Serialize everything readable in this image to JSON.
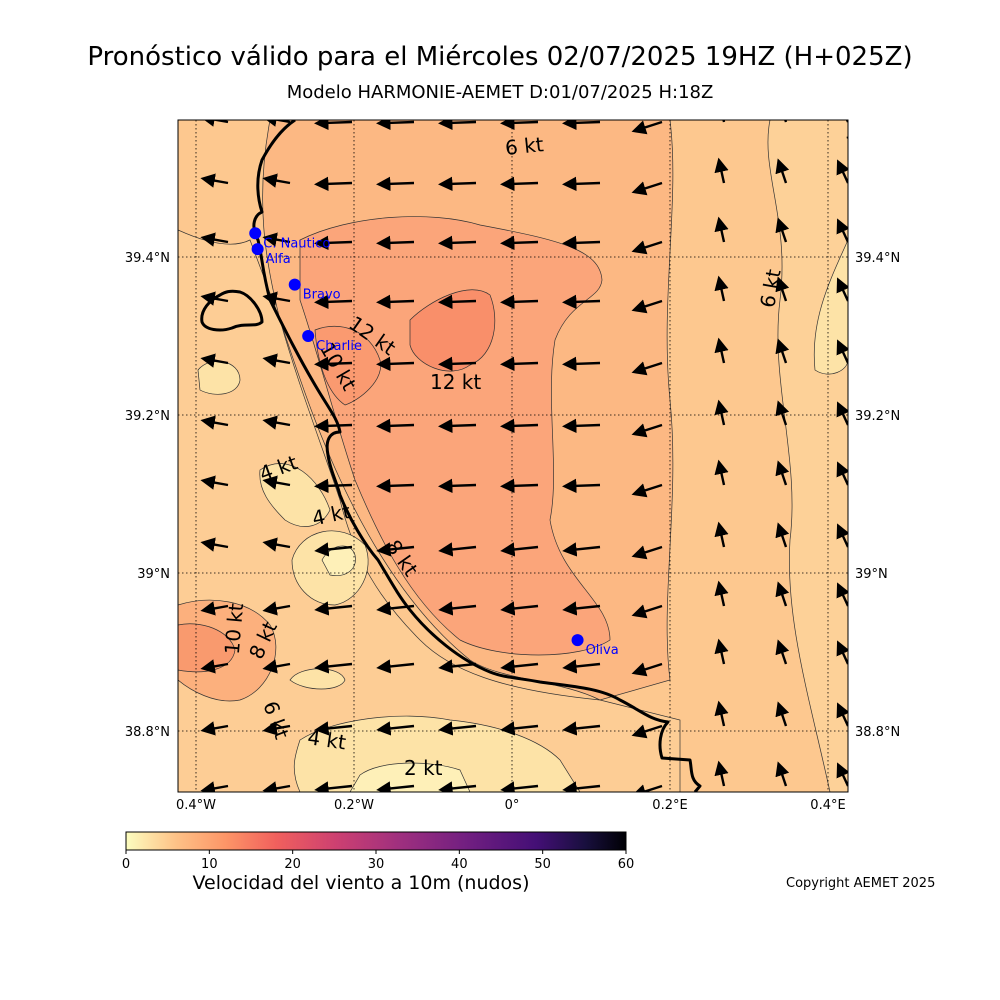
{
  "title": "Pronóstico válido para el Miércoles 02/07/2025 19HZ (H+025Z)",
  "subtitle": "Modelo HARMONIE-AEMET D:01/07/2025 H:18Z",
  "colorbar": {
    "label": "Velocidad del viento a 10m (nudos)",
    "ticks": [
      "0",
      "10",
      "20",
      "30",
      "40",
      "50",
      "60"
    ],
    "min": 0,
    "max": 60,
    "colormap": "magma_r"
  },
  "copyright": "Copyright AEMET 2025",
  "axes": {
    "lon_ticks": [
      "0.4°W",
      "0.2°W",
      "0°",
      "0.2°E",
      "0.4°E"
    ],
    "lat_ticks": [
      "39.4°N",
      "39.2°N",
      "39°N",
      "38.8°N"
    ],
    "lon_values": [
      -0.4,
      -0.2,
      0,
      0.2,
      0.4
    ],
    "lat_values": [
      39.4,
      39.2,
      39.0,
      38.8
    ],
    "grid": "dotted"
  },
  "contour_labels": [
    "6 kt",
    "4 kt",
    "6 kt",
    "12 kt",
    "10 kt",
    "12 kt",
    "4 kt",
    "4 kt",
    "8 kt",
    "10 kt",
    "8 kt",
    "6 kt",
    "4 kt",
    "2 kt"
  ],
  "stations": [
    {
      "name": "C. Nautico",
      "lon": -0.325,
      "lat": 39.43
    },
    {
      "name": "Alfa",
      "lon": -0.322,
      "lat": 39.41
    },
    {
      "name": "Bravo",
      "lon": -0.275,
      "lat": 39.365
    },
    {
      "name": "Charlie",
      "lon": -0.258,
      "lat": 39.3
    },
    {
      "name": "Oliva",
      "lon": 0.083,
      "lat": 38.915
    }
  ],
  "colors": {
    "station": "#0000ff",
    "coast": "#000000",
    "calm": "#fde9a9",
    "mid": "#fbb985",
    "strong": "#f7906a"
  }
}
